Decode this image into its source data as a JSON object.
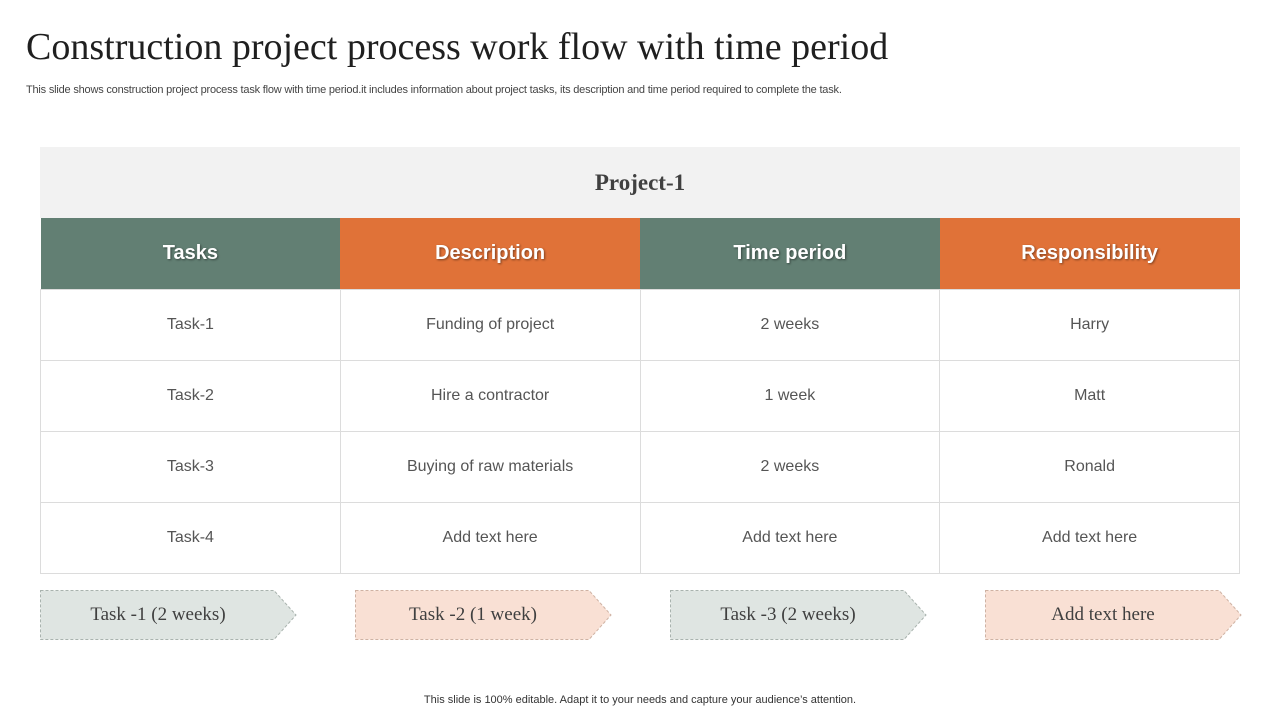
{
  "title": "Construction project process work flow with time period",
  "subtitle": "This slide shows construction project process task flow with time period.it includes information about project tasks, its description and time period required to complete the task.",
  "project": {
    "name": "Project-1"
  },
  "table": {
    "headers": [
      "Tasks",
      "Description",
      "Time period",
      "Responsibility"
    ],
    "rows": [
      [
        "Task-1",
        "Funding of  project",
        "2 weeks",
        "Harry"
      ],
      [
        "Task-2",
        "Hire a contractor",
        "1 week",
        "Matt"
      ],
      [
        "Task-3",
        "Buying of  raw materials",
        "2 weeks",
        "Ronald"
      ],
      [
        "Task-4",
        "Add text here",
        "Add text here",
        "Add text here"
      ]
    ]
  },
  "flow": [
    {
      "label": "Task -1 (2 weeks)",
      "color": "#dfe5e2"
    },
    {
      "label": "Task -2 (1 week)",
      "color": "#f9e0d4"
    },
    {
      "label": "Task -3 (2 weeks)",
      "color": "#dfe5e2"
    },
    {
      "label": "Add text here",
      "color": "#f9e0d4"
    }
  ],
  "colors": {
    "green": "#627f73",
    "orange": "#e07238"
  },
  "footer": "This slide is 100% editable. Adapt it to your needs and capture your audience’s attention."
}
